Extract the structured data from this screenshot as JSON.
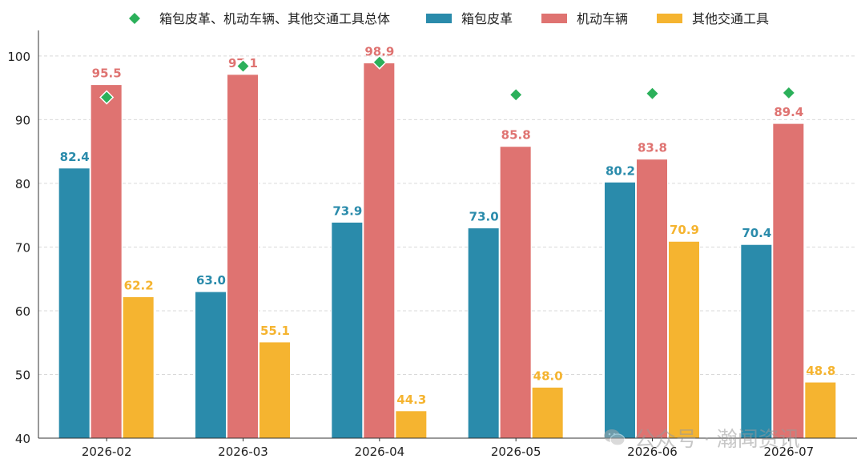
{
  "chart_data": {
    "type": "bar",
    "categories": [
      "2026-02",
      "2026-03",
      "2026-04",
      "2026-05",
      "2026-06",
      "2026-07"
    ],
    "series": [
      {
        "name": "箱包皮革",
        "values": [
          82.4,
          63.0,
          73.9,
          73.0,
          80.2,
          70.4
        ],
        "color": "#2a8bab",
        "labels": [
          "82.4",
          "63.0",
          "73.9",
          "73.0",
          "80.2",
          "70.4"
        ]
      },
      {
        "name": "机动车辆",
        "values": [
          95.5,
          97.1,
          98.9,
          85.8,
          83.8,
          89.4
        ],
        "color": "#df7371",
        "labels": [
          "95.5",
          "97.1",
          "98.9",
          "85.8",
          "83.8",
          "89.4"
        ]
      },
      {
        "name": "其他交通工具",
        "values": [
          62.2,
          55.1,
          44.3,
          48.0,
          70.9,
          48.8
        ],
        "color": "#f5b430",
        "labels": [
          "62.2",
          "55.1",
          "44.3",
          "48.0",
          "70.9",
          "48.8"
        ]
      }
    ],
    "overlay": {
      "name": "箱包皮革、机动车辆、其他交通工具总体",
      "type": "scatter",
      "marker": "diamond",
      "color": "#2bb05a",
      "values": [
        93.5,
        98.4,
        99.0,
        93.9,
        94.1,
        94.2
      ]
    },
    "y_ticks": [
      "40",
      "50",
      "60",
      "70",
      "80",
      "90",
      "100"
    ],
    "ylim": [
      40,
      104
    ],
    "grid": "horizontal dashed",
    "legend_position": "top"
  },
  "watermark": {
    "text": "公众号 · 瀚闻资讯",
    "icon": "wechat-icon"
  }
}
